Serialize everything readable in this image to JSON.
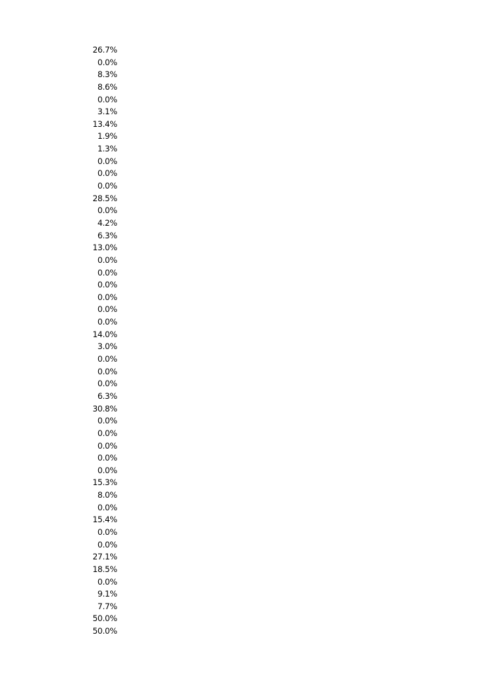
{
  "column": {
    "values": [
      "26.7%",
      "0.0%",
      "8.3%",
      "8.6%",
      "0.0%",
      "3.1%",
      "13.4%",
      "1.9%",
      "1.3%",
      "0.0%",
      "0.0%",
      "0.0%",
      "28.5%",
      "0.0%",
      "4.2%",
      "6.3%",
      "13.0%",
      "0.0%",
      "0.0%",
      "0.0%",
      "0.0%",
      "0.0%",
      "0.0%",
      "14.0%",
      "3.0%",
      "0.0%",
      "0.0%",
      "0.0%",
      "6.3%",
      "30.8%",
      "0.0%",
      "0.0%",
      "0.0%",
      "0.0%",
      "0.0%",
      "15.3%",
      "8.0%",
      "0.0%",
      "15.4%",
      "0.0%",
      "0.0%",
      "27.1%",
      "18.5%",
      "0.0%",
      "9.1%",
      "7.7%",
      "50.0%",
      "50.0%"
    ]
  }
}
